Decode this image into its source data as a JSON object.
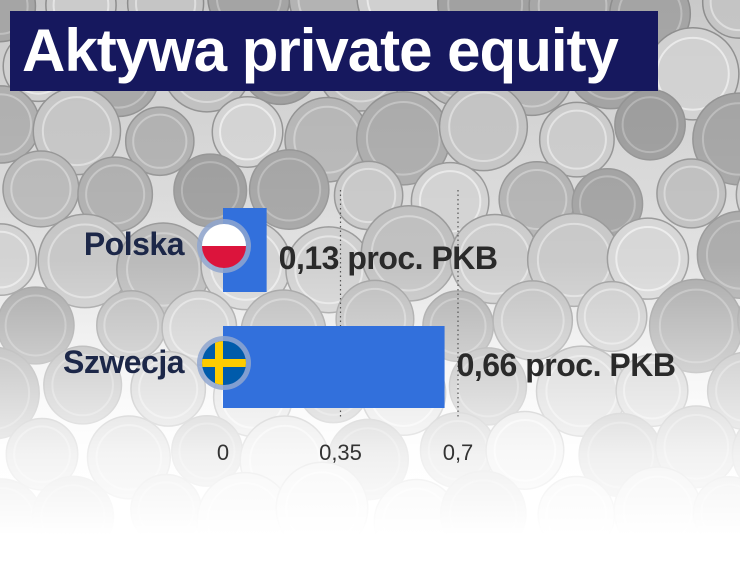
{
  "title": "Aktywa private equity",
  "colors": {
    "title_bg": "#16185e",
    "bar": "#3270dc",
    "label": "#1c2748"
  },
  "chart_data": {
    "type": "bar",
    "orientation": "horizontal",
    "categories": [
      "Polska",
      "Szwecja"
    ],
    "values": [
      0.13,
      0.66
    ],
    "value_labels": [
      "0,13 proc. PKB",
      "0,66 proc. PKB"
    ],
    "flags": [
      "poland-flag-icon",
      "sweden-flag-icon"
    ],
    "xticks": [
      "0",
      "0,35",
      "0,7"
    ],
    "xtick_values": [
      0,
      0.35,
      0.7
    ],
    "xlim": [
      0,
      0.7
    ],
    "grid": "vertical-dotted"
  }
}
